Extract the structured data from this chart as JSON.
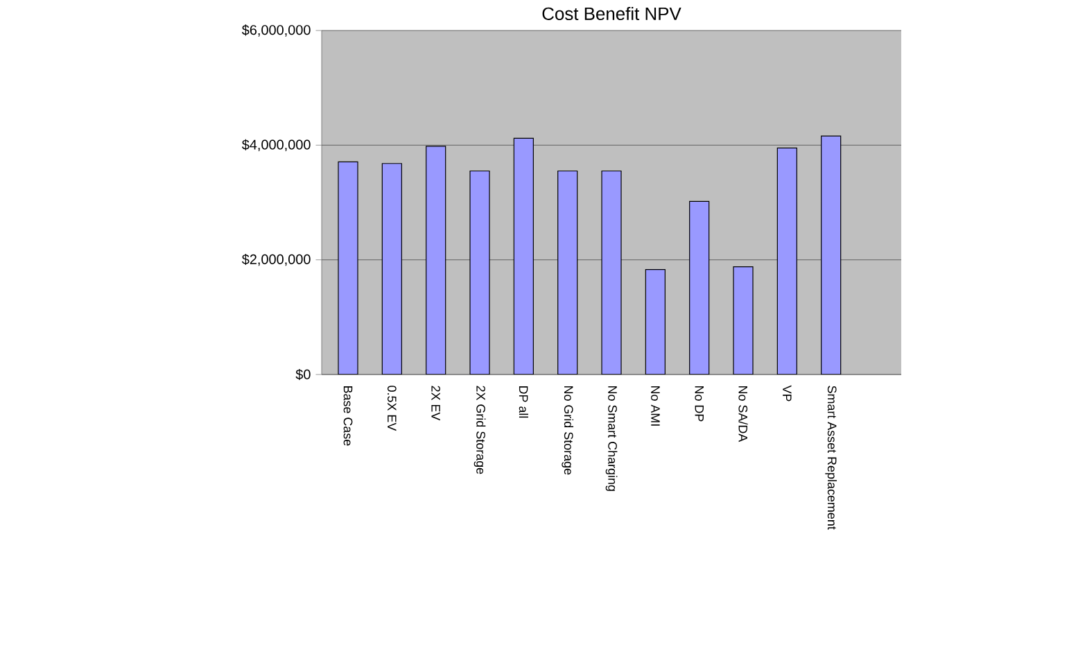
{
  "chart_data": {
    "type": "bar",
    "title": "Cost Benefit NPV",
    "categories": [
      "Base Case",
      "0.5X EV",
      "2X EV",
      "2X Grid Storage",
      "DP all",
      "No Grid Storage",
      "No Smart Charging",
      "No AMI",
      "No DP",
      "No SA/DA",
      "VP",
      "Smart Asset Replacement"
    ],
    "values": [
      3710000,
      3680000,
      3980000,
      3550000,
      4120000,
      3550000,
      3550000,
      1830000,
      3020000,
      1880000,
      3950000,
      4160000
    ],
    "color": "#9999ff",
    "ylim": [
      0,
      6000000
    ],
    "yticks": [
      {
        "value": 0,
        "label": "$0"
      },
      {
        "value": 2000000,
        "label": "$2,000,000"
      },
      {
        "value": 4000000,
        "label": "$4,000,000"
      },
      {
        "value": 6000000,
        "label": "$6,000,000"
      }
    ],
    "grid": "y"
  }
}
